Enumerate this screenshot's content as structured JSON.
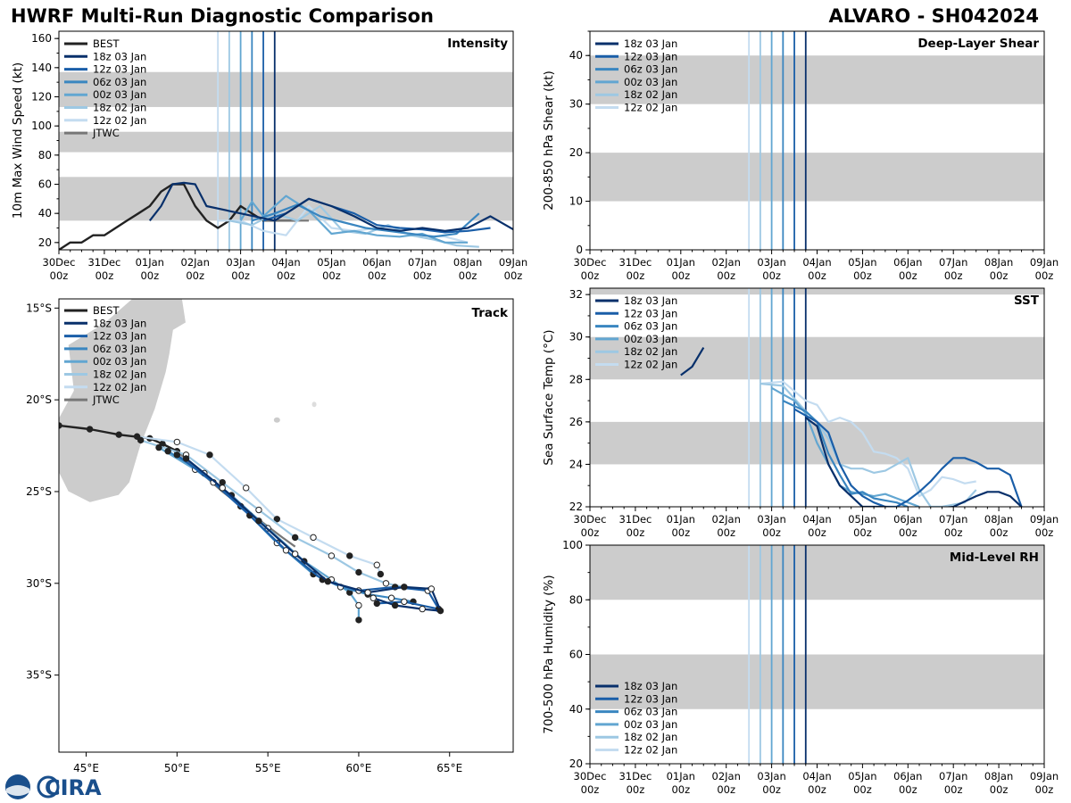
{
  "header": {
    "title_left": "HWRF Multi-Run Diagnostic Comparison",
    "title_right": "ALVARO - SH042024"
  },
  "time_axis": {
    "labels": [
      "30Dec",
      "31Dec",
      "01Jan",
      "02Jan",
      "03Jan",
      "04Jan",
      "05Jan",
      "06Jan",
      "07Jan",
      "08Jan",
      "09Jan"
    ],
    "sublabel": "00z",
    "range_days": [
      0,
      10
    ]
  },
  "run_colors": {
    "18z 03 Jan": "#08306b",
    "12z 03 Jan": "#1a5ea8",
    "06z 03 Jan": "#3a86c0",
    "00z 03 Jan": "#62a6d1",
    "18z 02 Jan": "#9dc8e3",
    "12z 02 Jan": "#c4dcf0",
    "BEST": "#222222",
    "JTWC": "#777777"
  },
  "run_times_days": {
    "12z 02 Jan": 3.5,
    "18z 02 Jan": 3.75,
    "00z 03 Jan": 4.0,
    "06z 03 Jan": 4.25,
    "12z 03 Jan": 4.5,
    "18z 03 Jan": 4.75
  },
  "chart_data": [
    {
      "id": "intensity",
      "type": "line",
      "title": "Intensity",
      "ylabel": "10m Max Wind Speed (kt)",
      "ylim": [
        15,
        165
      ],
      "yticks": [
        20,
        40,
        60,
        80,
        100,
        120,
        140,
        160
      ],
      "bands": [
        [
          35,
          65
        ],
        [
          82,
          96
        ],
        [
          113,
          137
        ]
      ],
      "legend": [
        "BEST",
        "18z 03 Jan",
        "12z 03 Jan",
        "06z 03 Jan",
        "00z 03 Jan",
        "18z 02 Jan",
        "12z 02 Jan",
        "JTWC"
      ],
      "series": [
        {
          "name": "BEST",
          "x": [
            0,
            0.25,
            0.5,
            0.75,
            1,
            1.25,
            1.5,
            1.75,
            2,
            2.25,
            2.5,
            2.75,
            3,
            3.25,
            3.5,
            3.75,
            4,
            4.25,
            4.5,
            4.75,
            5,
            5.25
          ],
          "y": [
            15,
            20,
            20,
            25,
            25,
            30,
            35,
            40,
            45,
            55,
            60,
            60,
            45,
            35,
            30,
            35,
            45,
            40,
            35,
            35,
            35,
            35
          ]
        },
        {
          "name": "JTWC",
          "x": [
            4.5,
            5.0,
            5.5
          ],
          "y": [
            35,
            35,
            35
          ]
        },
        {
          "name": "12z 02 Jan",
          "x": [
            3.5,
            4,
            4.5,
            5,
            5.5,
            6,
            6.5,
            7,
            7.5,
            8,
            8.5,
            9
          ],
          "y": [
            35,
            35,
            28,
            25,
            45,
            30,
            28,
            30,
            27,
            25,
            24,
            20
          ]
        },
        {
          "name": "18z 02 Jan",
          "x": [
            3.75,
            4.25,
            4.75,
            5.25,
            5.75,
            6.25,
            6.75,
            7.25,
            7.75,
            8.25,
            8.75,
            9.25
          ],
          "y": [
            35,
            32,
            40,
            35,
            45,
            28,
            26,
            32,
            25,
            22,
            18,
            17
          ]
        },
        {
          "name": "00z 03 Jan",
          "x": [
            4,
            4.25,
            4.5,
            5,
            5.5,
            6,
            6.5,
            7,
            7.5,
            8,
            8.5,
            9
          ],
          "y": [
            35,
            48,
            38,
            52,
            42,
            26,
            28,
            25,
            24,
            26,
            20,
            20
          ]
        },
        {
          "name": "06z 03 Jan",
          "x": [
            4.25,
            4.75,
            5.25,
            5.75,
            6.25,
            6.75,
            7.25,
            7.75,
            8.25,
            8.75,
            9.25
          ],
          "y": [
            35,
            40,
            46,
            38,
            34,
            30,
            28,
            26,
            24,
            26,
            40
          ]
        },
        {
          "name": "12z 03 Jan",
          "x": [
            4.5,
            5,
            5.5,
            6,
            6.5,
            7,
            7.5,
            8,
            8.5,
            9,
            9.5
          ],
          "y": [
            35,
            40,
            50,
            45,
            40,
            32,
            30,
            29,
            27,
            28,
            30
          ]
        },
        {
          "name": "18z 03 Jan",
          "x": [
            2,
            2.25,
            2.5,
            2.75,
            3,
            3.25,
            4.75,
            5.0,
            5.5,
            6,
            6.5,
            7,
            7.5,
            8,
            8.5,
            9,
            9.5,
            10
          ],
          "y": [
            35,
            45,
            60,
            61,
            60,
            45,
            35,
            40,
            50,
            45,
            38,
            30,
            28,
            30,
            28,
            30,
            38,
            29
          ]
        }
      ]
    },
    {
      "id": "shear",
      "type": "line",
      "title": "Deep-Layer Shear",
      "ylabel": "200-850 hPa Shear (kt)",
      "ylim": [
        0,
        45
      ],
      "yticks": [
        0,
        10,
        20,
        30,
        40
      ],
      "bands": [
        [
          10,
          20
        ],
        [
          30,
          40
        ]
      ],
      "legend": [
        "18z 03 Jan",
        "12z 03 Jan",
        "06z 03 Jan",
        "00z 03 Jan",
        "18z 02 Jan",
        "12z 02 Jan"
      ],
      "series": []
    },
    {
      "id": "track",
      "type": "scatter",
      "title": "Track",
      "xlim": [
        43.5,
        68.5
      ],
      "ylim": [
        -39.2,
        -14.5
      ],
      "xticks": [
        45,
        50,
        55,
        60,
        65
      ],
      "xticklabels": [
        "45°E",
        "50°E",
        "55°E",
        "60°E",
        "65°E"
      ],
      "yticks": [
        -15,
        -20,
        -25,
        -30,
        -35
      ],
      "yticklabels": [
        "15°S",
        "20°S",
        "25°S",
        "30°S",
        "35°S"
      ],
      "legend": [
        "BEST",
        "18z 03 Jan",
        "12z 03 Jan",
        "06z 03 Jan",
        "00z 03 Jan",
        "18z 02 Jan",
        "12z 02 Jan",
        "JTWC"
      ],
      "series": [
        {
          "name": "BEST",
          "lon": [
            43.5,
            45.2,
            46.8,
            48.5,
            49.2,
            50.0
          ],
          "lat": [
            -21.4,
            -21.6,
            -21.9,
            -22.1,
            -22.4,
            -22.8
          ]
        },
        {
          "name": "JTWC",
          "lon": [
            50.0,
            52.5,
            54.2,
            55.8,
            56.5
          ],
          "lat": [
            -22.8,
            -25.0,
            -26.3,
            -27.5,
            -28.0
          ]
        },
        {
          "name": "12z 02 Jan",
          "lon": [
            47.8,
            50.0,
            51.8,
            53.8,
            55.5,
            57.5,
            59.5,
            61.0,
            61.2
          ],
          "lat": [
            -22.0,
            -22.3,
            -23.0,
            -24.8,
            -26.5,
            -27.5,
            -28.5,
            -29.0,
            -29.5
          ]
        },
        {
          "name": "18z 02 Jan",
          "lon": [
            48.0,
            50.5,
            52.5,
            54.5,
            56.5,
            58.5,
            60.0,
            61.5,
            62.5
          ],
          "lat": [
            -22.2,
            -23.0,
            -24.5,
            -26.0,
            -27.5,
            -28.5,
            -29.4,
            -30.0,
            -30.2
          ]
        },
        {
          "name": "00z 03 Jan",
          "lon": [
            49.0,
            51.0,
            53.0,
            55.0,
            57.0,
            58.5,
            59.5,
            60.0,
            60.0
          ],
          "lat": [
            -22.6,
            -23.8,
            -25.2,
            -27.0,
            -28.8,
            -29.8,
            -30.5,
            -31.2,
            -32.0
          ]
        },
        {
          "name": "06z 03 Jan",
          "lon": [
            49.5,
            51.5,
            53.5,
            55.5,
            57.5,
            59.0,
            60.5,
            61.8,
            63.0
          ],
          "lat": [
            -22.8,
            -24.0,
            -25.8,
            -27.8,
            -29.5,
            -30.2,
            -30.6,
            -30.8,
            -31.0
          ]
        },
        {
          "name": "12z 03 Jan",
          "lon": [
            50.0,
            52.0,
            54.0,
            56.0,
            58.0,
            60.0,
            62.0,
            63.8,
            64.4,
            62.5,
            61.0
          ],
          "lat": [
            -23.0,
            -24.5,
            -26.3,
            -28.2,
            -29.8,
            -30.4,
            -30.2,
            -30.4,
            -31.4,
            -31.0,
            -31.1
          ]
        },
        {
          "name": "18z 03 Jan",
          "lon": [
            50.5,
            52.5,
            54.5,
            56.5,
            58.3,
            60.5,
            62.5,
            64.0,
            64.5,
            63.5,
            62.0,
            60.8
          ],
          "lat": [
            -23.2,
            -24.8,
            -26.6,
            -28.4,
            -29.9,
            -30.5,
            -30.2,
            -30.3,
            -31.5,
            -31.4,
            -31.2,
            -30.8
          ]
        }
      ]
    },
    {
      "id": "sst",
      "type": "line",
      "title": "SST",
      "ylabel": "Sea Surface Temp (°C)",
      "ylim": [
        22,
        32.3
      ],
      "yticks": [
        22,
        24,
        26,
        28,
        30,
        32
      ],
      "bands": [
        [
          24,
          26
        ],
        [
          28,
          30
        ],
        [
          32,
          32.3
        ]
      ],
      "legend": [
        "18z 03 Jan",
        "12z 03 Jan",
        "06z 03 Jan",
        "00z 03 Jan",
        "18z 02 Jan",
        "12z 02 Jan"
      ],
      "series": [
        {
          "name": "18z 03 Jan",
          "x": [
            2,
            2.25,
            2.5
          ],
          "y": [
            28.2,
            28.6,
            29.5
          ]
        },
        {
          "name": "12z 02 Jan",
          "x": [
            3.75,
            4.25,
            4.75,
            5.0,
            5.25,
            5.5,
            5.75,
            6.0,
            6.25,
            6.5,
            6.75,
            7.0,
            7.25,
            7.5,
            7.75,
            8.0,
            8.25,
            8.5
          ],
          "y": [
            27.8,
            27.9,
            27.0,
            26.8,
            26.0,
            26.2,
            26.0,
            25.5,
            24.6,
            24.5,
            24.3,
            23.8,
            22.5,
            22.8,
            23.4,
            23.3,
            23.1,
            23.2
          ]
        },
        {
          "name": "18z 02 Jan",
          "x": [
            3.75,
            4.25,
            4.75,
            5.0,
            5.25,
            5.5,
            5.75,
            6.0,
            6.25,
            6.5,
            6.75,
            7.0,
            7.25,
            7.5,
            7.75,
            8.0,
            8.25,
            8.5
          ],
          "y": [
            27.8,
            27.7,
            26.5,
            26.0,
            25.2,
            24.0,
            23.8,
            23.8,
            23.6,
            23.7,
            24.0,
            24.3,
            22.8,
            22.0,
            22.0,
            22.1,
            22.2,
            22.8
          ]
        },
        {
          "name": "00z 03 Jan",
          "x": [
            4.0,
            4.5,
            4.75,
            5.0,
            5.25,
            5.5,
            5.75,
            6.0,
            6.25,
            6.5,
            6.75,
            7.0,
            7.25
          ],
          "y": [
            27.6,
            27.0,
            26.4,
            25.0,
            24.0,
            23.0,
            22.7,
            22.6,
            22.5,
            22.6,
            22.4,
            22.2,
            22.0
          ]
        },
        {
          "name": "06z 03 Jan",
          "x": [
            4.25,
            4.75,
            5.0,
            5.25,
            5.5,
            5.75,
            6.0,
            6.25,
            6.5,
            6.75,
            7.0
          ],
          "y": [
            27.0,
            26.5,
            26.0,
            24.5,
            23.5,
            22.6,
            22.7,
            22.4,
            22.3,
            22.2,
            22.0
          ]
        },
        {
          "name": "12z 03 Jan",
          "x": [
            4.5,
            5.0,
            5.25,
            5.5,
            5.75,
            6.0,
            6.25,
            6.5,
            6.75,
            7.0,
            7.25,
            7.5,
            7.75,
            8.0,
            8.25,
            8.5,
            8.75,
            9.0,
            9.25,
            9.5
          ],
          "y": [
            26.6,
            26.0,
            25.5,
            24.0,
            23.0,
            22.5,
            22.2,
            22.0,
            22.0,
            22.3,
            22.7,
            23.2,
            23.8,
            24.3,
            24.3,
            24.1,
            23.8,
            23.8,
            23.5,
            22.0
          ]
        },
        {
          "name": "18z 03 Jan",
          "x": [
            4.75,
            5.0,
            5.25,
            5.5,
            5.75,
            6.0,
            6.25,
            6.5,
            7.0,
            7.5,
            8.0,
            8.5,
            8.75,
            9.0,
            9.25,
            9.5
          ],
          "y": [
            26.2,
            25.8,
            24.0,
            23.0,
            22.5,
            22.0,
            22.0,
            22.0,
            21.9,
            21.9,
            22.0,
            22.5,
            22.7,
            22.7,
            22.5,
            22.0
          ]
        }
      ]
    },
    {
      "id": "rh",
      "type": "line",
      "title": "Mid-Level RH",
      "ylabel": "700-500 hPa Humidity (%)",
      "ylim": [
        20,
        100
      ],
      "yticks": [
        20,
        40,
        60,
        80,
        100
      ],
      "bands": [
        [
          40,
          60
        ],
        [
          80,
          100
        ]
      ],
      "legend": [
        "18z 03 Jan",
        "12z 03 Jan",
        "06z 03 Jan",
        "00z 03 Jan",
        "18z 02 Jan",
        "12z 02 Jan"
      ],
      "series": []
    }
  ],
  "logo": {
    "text": "CIRA"
  }
}
